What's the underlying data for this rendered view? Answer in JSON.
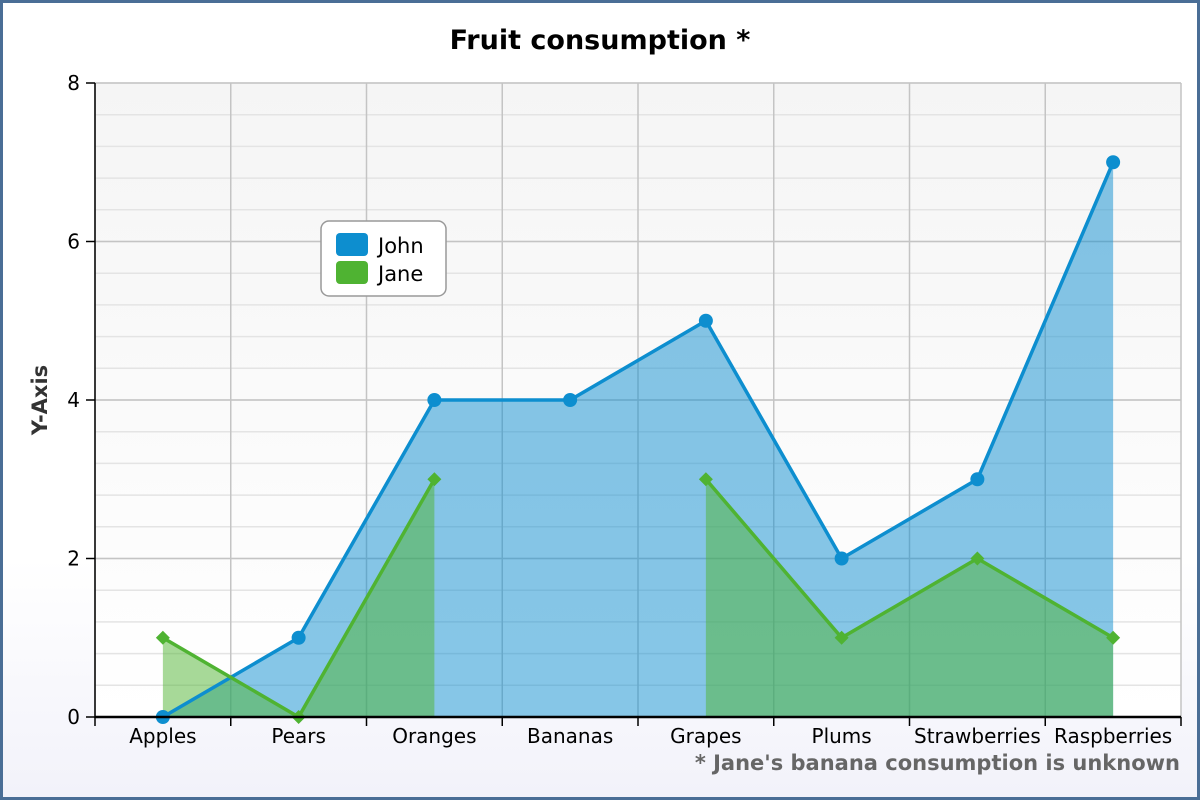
{
  "chart_data": {
    "type": "area",
    "title": "Fruit consumption *",
    "xlabel": "",
    "ylabel": "Y-Axis",
    "categories": [
      "Apples",
      "Pears",
      "Oranges",
      "Bananas",
      "Grapes",
      "Plums",
      "Strawberries",
      "Raspberries"
    ],
    "ylim": [
      0,
      8
    ],
    "yticks": [
      "0",
      "2",
      "4",
      "6",
      "8"
    ],
    "grid": true,
    "legend_position": "top-left",
    "series": [
      {
        "name": "John",
        "values": [
          0,
          1,
          4,
          4,
          5,
          2,
          3,
          7
        ],
        "color": "#0d8ecf",
        "marker": "circle"
      },
      {
        "name": "Jane",
        "values": [
          1,
          0,
          3,
          null,
          3,
          1,
          2,
          1
        ],
        "color": "#4fb332",
        "marker": "diamond"
      }
    ],
    "annotation": "* Jane's banana consumption is unknown"
  }
}
